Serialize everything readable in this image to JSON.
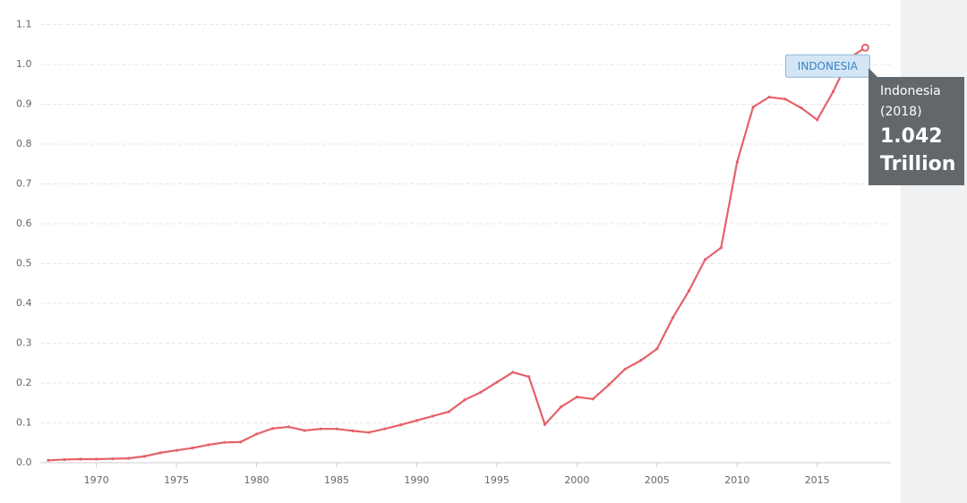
{
  "chart_data": {
    "type": "line",
    "x": [
      1967,
      1968,
      1969,
      1970,
      1971,
      1972,
      1973,
      1974,
      1975,
      1976,
      1977,
      1978,
      1979,
      1980,
      1981,
      1982,
      1983,
      1984,
      1985,
      1986,
      1987,
      1988,
      1989,
      1990,
      1991,
      1992,
      1993,
      1994,
      1995,
      1996,
      1997,
      1998,
      1999,
      2000,
      2001,
      2002,
      2003,
      2004,
      2005,
      2006,
      2007,
      2008,
      2009,
      2010,
      2011,
      2012,
      2013,
      2014,
      2015,
      2016,
      2017,
      2018
    ],
    "series": [
      {
        "name": "INDONESIA",
        "color": "#e4626a",
        "values": [
          0.006,
          0.008,
          0.009,
          0.009,
          0.01,
          0.011,
          0.016,
          0.025,
          0.031,
          0.037,
          0.045,
          0.051,
          0.052,
          0.072,
          0.086,
          0.09,
          0.081,
          0.085,
          0.085,
          0.08,
          0.076,
          0.085,
          0.095,
          0.106,
          0.117,
          0.128,
          0.158,
          0.177,
          0.202,
          0.227,
          0.216,
          0.096,
          0.14,
          0.165,
          0.16,
          0.196,
          0.235,
          0.257,
          0.286,
          0.365,
          0.432,
          0.51,
          0.54,
          0.755,
          0.893,
          0.918,
          0.913,
          0.891,
          0.861,
          0.932,
          1.016,
          1.042
        ]
      }
    ],
    "xlim": [
      1966.5,
      2019.6
    ],
    "xticks": [
      1970,
      1975,
      1980,
      1985,
      1990,
      1995,
      2000,
      2005,
      2010,
      2015
    ],
    "ylim": [
      0,
      1.1
    ],
    "yticks": [
      {
        "value": 0,
        "label": "0.0"
      },
      0.1,
      0.2,
      0.3,
      0.4,
      0.5,
      0.6,
      0.7,
      0.8,
      0.9,
      {
        "value": 1,
        "label": "1.0"
      },
      1.1
    ],
    "grid": true,
    "tooltip": {
      "name": "Indonesia",
      "period": "(2018)",
      "value": "1.042",
      "unit": "Trillion"
    }
  }
}
